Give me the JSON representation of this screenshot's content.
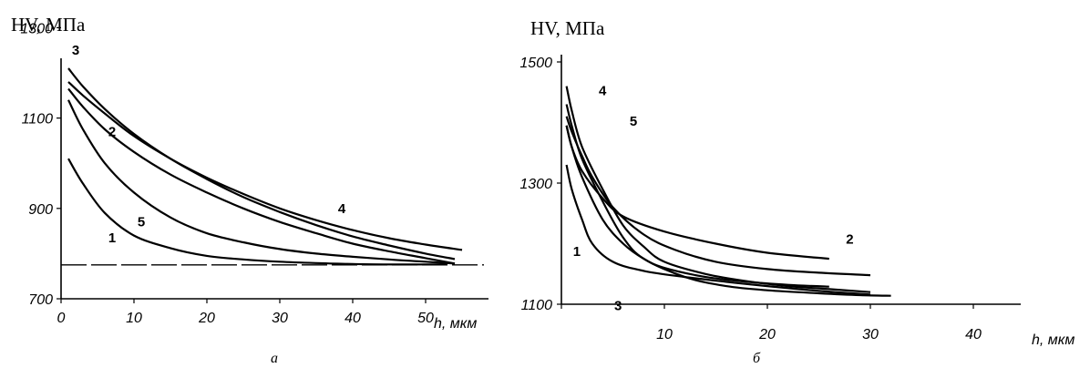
{
  "chart_data": [
    {
      "type": "line",
      "panel_label": "а",
      "ylabel": "HV, МПа",
      "xlabel": "h, мкм",
      "xlim": [
        0,
        58
      ],
      "ylim": [
        700,
        1300
      ],
      "xticks": [
        0,
        10,
        20,
        30,
        40,
        50
      ],
      "yticks": [
        700,
        900,
        1100,
        1300
      ],
      "ytick_labels": [
        "700",
        "900",
        "1100",
        "1300"
      ],
      "grid": false,
      "reference_line": {
        "y": 775
      },
      "series": [
        {
          "name": "1",
          "x": [
            1,
            3,
            6,
            10,
            15,
            20,
            25,
            30,
            35,
            40,
            45,
            50,
            53
          ],
          "y": [
            1010,
            955,
            890,
            840,
            812,
            795,
            787,
            782,
            779,
            777,
            776,
            776,
            776
          ]
        },
        {
          "name": "2",
          "x": [
            1,
            3,
            6,
            10,
            15,
            20,
            25,
            30,
            35,
            40,
            45,
            50,
            54
          ],
          "y": [
            1165,
            1125,
            1075,
            1025,
            975,
            935,
            900,
            870,
            845,
            822,
            805,
            790,
            778
          ]
        },
        {
          "name": "3",
          "x": [
            1,
            3,
            6,
            10,
            15,
            20,
            25,
            30,
            35,
            40,
            45,
            50,
            54
          ],
          "y": [
            1210,
            1170,
            1120,
            1065,
            1010,
            965,
            925,
            892,
            863,
            838,
            818,
            800,
            788
          ]
        },
        {
          "name": "4",
          "x": [
            1,
            3,
            6,
            10,
            15,
            20,
            25,
            30,
            35,
            40,
            45,
            50,
            55
          ],
          "y": [
            1180,
            1150,
            1110,
            1060,
            1010,
            968,
            932,
            900,
            874,
            852,
            834,
            820,
            808
          ]
        },
        {
          "name": "5",
          "x": [
            1,
            3,
            6,
            10,
            15,
            20,
            25,
            30,
            35,
            40,
            45,
            50,
            54
          ],
          "y": [
            1140,
            1075,
            1000,
            935,
            880,
            845,
            825,
            810,
            800,
            793,
            787,
            782,
            778
          ]
        }
      ]
    },
    {
      "type": "line",
      "panel_label": "б",
      "ylabel": "HV, МПа",
      "xlabel": "h, мкм",
      "xlim": [
        0,
        44
      ],
      "ylim": [
        1100,
        1520
      ],
      "xticks": [
        0,
        10,
        20,
        30,
        40
      ],
      "xtick_labels": [
        "",
        "10",
        "20",
        "30",
        "40"
      ],
      "yticks": [
        1100,
        1300,
        1500
      ],
      "ytick_labels": [
        "1100",
        "1300",
        "1500"
      ],
      "grid": false,
      "series": [
        {
          "name": "1",
          "x": [
            0.5,
            1,
            2,
            3,
            5,
            8,
            12,
            16,
            20,
            25,
            30
          ],
          "y": [
            1330,
            1290,
            1240,
            1200,
            1170,
            1155,
            1145,
            1137,
            1130,
            1122,
            1116
          ]
        },
        {
          "name": "2",
          "x": [
            0.5,
            1,
            2,
            4,
            6,
            10,
            15,
            20,
            26
          ],
          "y": [
            1395,
            1360,
            1320,
            1275,
            1245,
            1220,
            1200,
            1185,
            1175
          ]
        },
        {
          "name": "3",
          "x": [
            0.5,
            1,
            2,
            4,
            6,
            8,
            10,
            14,
            18,
            22,
            26
          ],
          "y": [
            1395,
            1360,
            1310,
            1240,
            1200,
            1175,
            1160,
            1145,
            1137,
            1132,
            1129
          ]
        },
        {
          "name": "4",
          "x": [
            0.5,
            1,
            2,
            4,
            6,
            8,
            10,
            14,
            18,
            22,
            26,
            30
          ],
          "y": [
            1460,
            1420,
            1360,
            1290,
            1230,
            1195,
            1170,
            1150,
            1138,
            1130,
            1125,
            1120
          ]
        },
        {
          "name": "5",
          "x": [
            0.5,
            1,
            2,
            3,
            5,
            8,
            11,
            15,
            20,
            25,
            30
          ],
          "y": [
            1410,
            1385,
            1345,
            1310,
            1260,
            1215,
            1190,
            1170,
            1158,
            1152,
            1148
          ]
        },
        {
          "name": "",
          "x": [
            0.5,
            1,
            2,
            4,
            6,
            8,
            12,
            16,
            20,
            25,
            29,
            32
          ],
          "y": [
            1430,
            1395,
            1340,
            1270,
            1210,
            1175,
            1145,
            1130,
            1123,
            1118,
            1115,
            1114
          ]
        }
      ]
    }
  ],
  "series_labels": {
    "a": [
      {
        "text": "3",
        "x": 2,
        "y": 1240
      },
      {
        "text": "2",
        "x": 7,
        "y": 1060
      },
      {
        "text": "1",
        "x": 7,
        "y": 825
      },
      {
        "text": "5",
        "x": 11,
        "y": 860
      },
      {
        "text": "4",
        "x": 38.5,
        "y": 890
      }
    ],
    "b": [
      {
        "text": "4",
        "x": 4,
        "y": 1445
      },
      {
        "text": "5",
        "x": 7,
        "y": 1395
      },
      {
        "text": "2",
        "x": 28,
        "y": 1200
      },
      {
        "text": "1",
        "x": 1.5,
        "y": 1180
      },
      {
        "text": "3",
        "x": 5.5,
        "y": 1090
      }
    ]
  }
}
